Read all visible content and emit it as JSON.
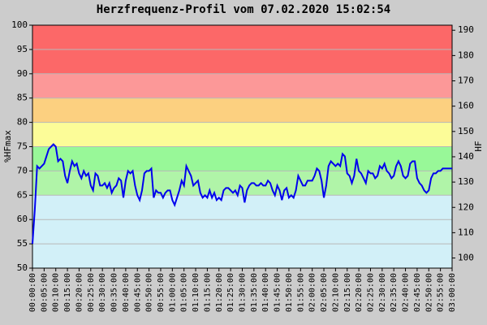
{
  "chart_data": {
    "type": "line",
    "title": "Herzfrequenz-Profil vom 07.02.2020 15:02:54",
    "ylabel": "%HFmax",
    "y2label": "HF",
    "ylim": [
      50,
      100
    ],
    "yticks": [
      50,
      55,
      60,
      65,
      70,
      75,
      80,
      85,
      90,
      95,
      100
    ],
    "y2lim": [
      96,
      192
    ],
    "y2ticks": [
      100,
      110,
      120,
      130,
      140,
      150,
      160,
      170,
      180,
      190
    ],
    "xlim": [
      0,
      180
    ],
    "xticks": [
      {
        "value": 0,
        "label": "00:00:00"
      },
      {
        "value": 5,
        "label": "00:05:00"
      },
      {
        "value": 10,
        "label": "00:10:00"
      },
      {
        "value": 15,
        "label": "00:15:00"
      },
      {
        "value": 20,
        "label": "00:20:00"
      },
      {
        "value": 25,
        "label": "00:25:00"
      },
      {
        "value": 30,
        "label": "00:30:00"
      },
      {
        "value": 35,
        "label": "00:35:00"
      },
      {
        "value": 40,
        "label": "00:40:00"
      },
      {
        "value": 45,
        "label": "00:45:00"
      },
      {
        "value": 50,
        "label": "00:50:00"
      },
      {
        "value": 55,
        "label": "00:55:00"
      },
      {
        "value": 60,
        "label": "01:00:00"
      },
      {
        "value": 65,
        "label": "01:05:00"
      },
      {
        "value": 70,
        "label": "01:10:00"
      },
      {
        "value": 75,
        "label": "01:15:00"
      },
      {
        "value": 80,
        "label": "01:20:00"
      },
      {
        "value": 85,
        "label": "01:25:00"
      },
      {
        "value": 90,
        "label": "01:30:00"
      },
      {
        "value": 95,
        "label": "01:35:00"
      },
      {
        "value": 100,
        "label": "01:40:00"
      },
      {
        "value": 105,
        "label": "01:45:00"
      },
      {
        "value": 110,
        "label": "01:50:00"
      },
      {
        "value": 115,
        "label": "01:55:00"
      },
      {
        "value": 120,
        "label": "02:00:00"
      },
      {
        "value": 125,
        "label": "02:05:00"
      },
      {
        "value": 130,
        "label": "02:10:00"
      },
      {
        "value": 135,
        "label": "02:15:00"
      },
      {
        "value": 140,
        "label": "02:20:00"
      },
      {
        "value": 145,
        "label": "02:25:00"
      },
      {
        "value": 150,
        "label": "02:30:00"
      },
      {
        "value": 155,
        "label": "02:35:00"
      },
      {
        "value": 160,
        "label": "02:40:00"
      },
      {
        "value": 165,
        "label": "02:45:00"
      },
      {
        "value": 170,
        "label": "02:50:00"
      },
      {
        "value": 175,
        "label": "02:55:00"
      },
      {
        "value": 180,
        "label": "03:00:00"
      }
    ],
    "bands": [
      {
        "from": 50,
        "to": 65,
        "color": "#d2f0f8"
      },
      {
        "from": 65,
        "to": 70,
        "color": "#b0f4a8"
      },
      {
        "from": 70,
        "to": 75,
        "color": "#98f898"
      },
      {
        "from": 75,
        "to": 80,
        "color": "#fcfc98"
      },
      {
        "from": 80,
        "to": 85,
        "color": "#fcd080"
      },
      {
        "from": 85,
        "to": 90,
        "color": "#fc9898"
      },
      {
        "from": 90,
        "to": 100,
        "color": "#fc6868"
      }
    ],
    "grid": true,
    "x": [
      0,
      1,
      2,
      3,
      4,
      5,
      6,
      7,
      8,
      9,
      10,
      11,
      12,
      13,
      14,
      15,
      16,
      17,
      18,
      19,
      20,
      21,
      22,
      23,
      24,
      25,
      26,
      27,
      28,
      29,
      30,
      31,
      32,
      33,
      34,
      35,
      36,
      37,
      38,
      39,
      40,
      41,
      42,
      43,
      44,
      45,
      46,
      47,
      48,
      49,
      50,
      51,
      52,
      53,
      54,
      55,
      56,
      57,
      58,
      59,
      60,
      61,
      62,
      63,
      64,
      65,
      66,
      67,
      68,
      69,
      70,
      71,
      72,
      73,
      74,
      75,
      76,
      77,
      78,
      79,
      80,
      81,
      82,
      83,
      84,
      85,
      86,
      87,
      88,
      89,
      90,
      91,
      92,
      93,
      94,
      95,
      96,
      97,
      98,
      99,
      100,
      101,
      102,
      103,
      104,
      105,
      106,
      107,
      108,
      109,
      110,
      111,
      112,
      113,
      114,
      115,
      116,
      117,
      118,
      119,
      120,
      121,
      122,
      123,
      124,
      125,
      126,
      127,
      128,
      129,
      130,
      131,
      132,
      133,
      134,
      135,
      136,
      137,
      138,
      139,
      140,
      141,
      142,
      143,
      144,
      145,
      146,
      147,
      148,
      149,
      150,
      151,
      152,
      153,
      154,
      155,
      156,
      157,
      158,
      159,
      160,
      161,
      162,
      163,
      164,
      165,
      166,
      167,
      168,
      169,
      170,
      171,
      172,
      173,
      174,
      175,
      176,
      177,
      178,
      179,
      180
    ],
    "series": [
      {
        "color": "#0000ee",
        "values": [
          55,
          62,
          71,
          70.5,
          71,
          71.5,
          73,
          74.5,
          75,
          75.5,
          75,
          72,
          72.5,
          72,
          69,
          67.5,
          70,
          72,
          71,
          71.5,
          69.5,
          68.5,
          70,
          69,
          69.5,
          67,
          66,
          69.5,
          69,
          67,
          67,
          67.5,
          66.5,
          67.5,
          65.5,
          66.5,
          67,
          68.5,
          68,
          64.5,
          68,
          70,
          69.5,
          70,
          67,
          65,
          64,
          66,
          69.5,
          70,
          70,
          70.5,
          64.5,
          66,
          65.5,
          65.5,
          64.5,
          65.5,
          66,
          66,
          64,
          63,
          64.5,
          66,
          68,
          67,
          71,
          70,
          69,
          67,
          67.5,
          68,
          65.5,
          64.5,
          65,
          64.5,
          66,
          64.5,
          65.5,
          64,
          64.5,
          64,
          66,
          66.5,
          66.5,
          66,
          65.5,
          66,
          65,
          67,
          66.5,
          63.5,
          66,
          67,
          67.5,
          67.5,
          67,
          67,
          67.5,
          67,
          67,
          68,
          67.5,
          66,
          65,
          67,
          66,
          64,
          66,
          66.5,
          64.5,
          65,
          64.5,
          66,
          69,
          68,
          67,
          67,
          68,
          68,
          68,
          69,
          70.5,
          70,
          68,
          64.5,
          67,
          71,
          72,
          71.5,
          71,
          71.5,
          71,
          73.5,
          73,
          69.5,
          69,
          67.5,
          69,
          72.5,
          70,
          69.5,
          68.5,
          67.5,
          70,
          69.5,
          69.5,
          68.5,
          69,
          71,
          70.5,
          71.5,
          70,
          69.5,
          68.5,
          69,
          71,
          72,
          71,
          69,
          68.5,
          69,
          71.5,
          72,
          72,
          68.5,
          67.5,
          67,
          66,
          65.5,
          66,
          68.5,
          69.5,
          69.5,
          70,
          70,
          70.5,
          70.5,
          70.5,
          70.5,
          70.5
        ]
      }
    ]
  }
}
